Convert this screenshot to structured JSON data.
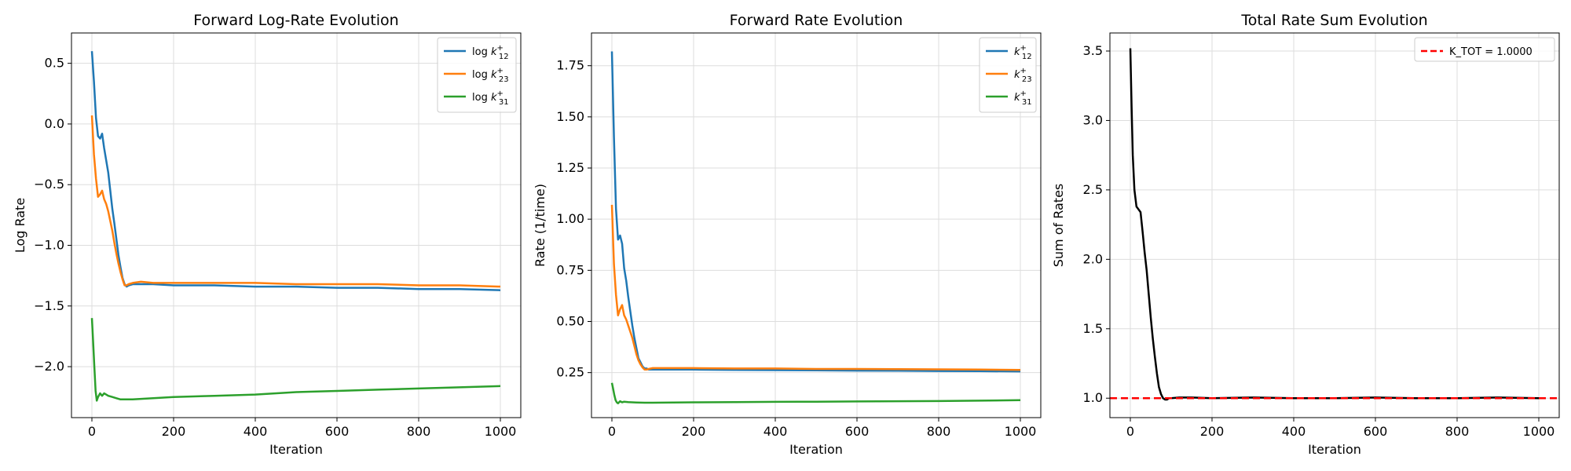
{
  "chart_data": [
    {
      "type": "line",
      "title": "Forward Log-Rate Evolution",
      "xlabel": "Iteration",
      "ylabel": "Log Rate",
      "xlim": [
        -50,
        1050
      ],
      "ylim": [
        -2.42,
        0.75
      ],
      "xticks": [
        0,
        200,
        400,
        600,
        800,
        1000
      ],
      "xtick_labels": [
        "0",
        "200",
        "400",
        "600",
        "800",
        "1000"
      ],
      "yticks": [
        -2.0,
        -1.5,
        -1.0,
        -0.5,
        0.0,
        0.5
      ],
      "ytick_labels": [
        "−2.0",
        "−1.5",
        "−1.0",
        "−0.5",
        "0.0",
        "0.5"
      ],
      "grid": true,
      "legend_position": "top-right",
      "series": [
        {
          "name": "log k12+",
          "legend_base": "log k",
          "legend_sub": "12",
          "legend_sup": "+",
          "color": "#1f77b4",
          "x": [
            0,
            5,
            10,
            15,
            20,
            25,
            30,
            35,
            40,
            45,
            50,
            55,
            60,
            65,
            70,
            75,
            80,
            85,
            90,
            100,
            120,
            150,
            200,
            300,
            400,
            500,
            600,
            700,
            800,
            900,
            1000
          ],
          "y": [
            0.6,
            0.35,
            0.05,
            -0.1,
            -0.12,
            -0.08,
            -0.2,
            -0.3,
            -0.4,
            -0.55,
            -0.7,
            -0.82,
            -0.95,
            -1.08,
            -1.18,
            -1.27,
            -1.32,
            -1.34,
            -1.33,
            -1.32,
            -1.32,
            -1.32,
            -1.33,
            -1.33,
            -1.34,
            -1.34,
            -1.35,
            -1.35,
            -1.36,
            -1.36,
            -1.37
          ]
        },
        {
          "name": "log k23+",
          "legend_base": "log k",
          "legend_sub": "23",
          "legend_sup": "+",
          "color": "#ff7f0e",
          "x": [
            0,
            5,
            10,
            15,
            20,
            25,
            30,
            35,
            40,
            45,
            50,
            55,
            60,
            65,
            70,
            75,
            80,
            85,
            90,
            100,
            120,
            150,
            200,
            300,
            400,
            500,
            600,
            700,
            800,
            900,
            1000
          ],
          "y": [
            0.07,
            -0.25,
            -0.45,
            -0.6,
            -0.58,
            -0.55,
            -0.62,
            -0.66,
            -0.72,
            -0.8,
            -0.88,
            -0.98,
            -1.07,
            -1.15,
            -1.22,
            -1.28,
            -1.33,
            -1.33,
            -1.32,
            -1.31,
            -1.3,
            -1.31,
            -1.31,
            -1.31,
            -1.31,
            -1.32,
            -1.32,
            -1.32,
            -1.33,
            -1.33,
            -1.34
          ]
        },
        {
          "name": "log k31+",
          "legend_base": "log k",
          "legend_sub": "31",
          "legend_sup": "+",
          "color": "#2ca02c",
          "x": [
            0,
            3,
            6,
            9,
            12,
            15,
            20,
            25,
            30,
            40,
            50,
            60,
            70,
            80,
            90,
            100,
            150,
            200,
            300,
            400,
            500,
            600,
            700,
            800,
            900,
            1000
          ],
          "y": [
            -1.6,
            -1.8,
            -2.0,
            -2.2,
            -2.28,
            -2.25,
            -2.22,
            -2.24,
            -2.22,
            -2.24,
            -2.25,
            -2.26,
            -2.27,
            -2.27,
            -2.27,
            -2.27,
            -2.26,
            -2.25,
            -2.24,
            -2.23,
            -2.21,
            -2.2,
            -2.19,
            -2.18,
            -2.17,
            -2.16
          ]
        }
      ]
    },
    {
      "type": "line",
      "title": "Forward Rate Evolution",
      "xlabel": "Iteration",
      "ylabel": "Rate (1/time)",
      "xlim": [
        -50,
        1050
      ],
      "ylim": [
        0.03,
        1.91
      ],
      "xticks": [
        0,
        200,
        400,
        600,
        800,
        1000
      ],
      "xtick_labels": [
        "0",
        "200",
        "400",
        "600",
        "800",
        "1000"
      ],
      "yticks": [
        0.25,
        0.5,
        0.75,
        1.0,
        1.25,
        1.5,
        1.75
      ],
      "ytick_labels": [
        "0.25",
        "0.50",
        "0.75",
        "1.00",
        "1.25",
        "1.50",
        "1.75"
      ],
      "grid": true,
      "legend_position": "top-right",
      "series": [
        {
          "name": "k12+",
          "legend_base": "k",
          "legend_sub": "12",
          "legend_sup": "+",
          "color": "#1f77b4",
          "x": [
            0,
            5,
            10,
            15,
            20,
            25,
            30,
            35,
            40,
            45,
            50,
            55,
            60,
            65,
            70,
            75,
            80,
            85,
            90,
            100,
            150,
            200,
            300,
            400,
            500,
            600,
            700,
            800,
            900,
            1000
          ],
          "y": [
            1.82,
            1.4,
            1.05,
            0.9,
            0.92,
            0.88,
            0.76,
            0.7,
            0.62,
            0.55,
            0.48,
            0.42,
            0.37,
            0.32,
            0.3,
            0.28,
            0.27,
            0.27,
            0.265,
            0.265,
            0.265,
            0.265,
            0.263,
            0.262,
            0.261,
            0.26,
            0.259,
            0.258,
            0.257,
            0.256
          ]
        },
        {
          "name": "k23+",
          "legend_base": "k",
          "legend_sub": "23",
          "legend_sup": "+",
          "color": "#ff7f0e",
          "x": [
            0,
            5,
            10,
            15,
            20,
            25,
            30,
            35,
            40,
            45,
            50,
            55,
            60,
            65,
            70,
            75,
            80,
            85,
            90,
            100,
            150,
            200,
            300,
            400,
            500,
            600,
            700,
            800,
            900,
            1000
          ],
          "y": [
            1.07,
            0.78,
            0.63,
            0.53,
            0.56,
            0.58,
            0.53,
            0.51,
            0.48,
            0.45,
            0.42,
            0.38,
            0.34,
            0.31,
            0.29,
            0.275,
            0.265,
            0.265,
            0.268,
            0.272,
            0.272,
            0.272,
            0.27,
            0.27,
            0.268,
            0.268,
            0.267,
            0.266,
            0.265,
            0.263
          ]
        },
        {
          "name": "k31+",
          "legend_base": "k",
          "legend_sub": "31",
          "legend_sup": "+",
          "color": "#2ca02c",
          "x": [
            0,
            3,
            6,
            9,
            12,
            15,
            20,
            25,
            30,
            40,
            50,
            60,
            80,
            100,
            150,
            200,
            300,
            400,
            500,
            600,
            700,
            800,
            900,
            1000
          ],
          "y": [
            0.2,
            0.17,
            0.14,
            0.115,
            0.105,
            0.1,
            0.11,
            0.105,
            0.108,
            0.106,
            0.105,
            0.104,
            0.103,
            0.103,
            0.104,
            0.105,
            0.106,
            0.107,
            0.108,
            0.109,
            0.11,
            0.111,
            0.113,
            0.115
          ]
        }
      ]
    },
    {
      "type": "line",
      "title": "Total Rate Sum Evolution",
      "xlabel": "Iteration",
      "ylabel": "Sum of Rates",
      "xlim": [
        -50,
        1050
      ],
      "ylim": [
        0.86,
        3.63
      ],
      "xticks": [
        0,
        200,
        400,
        600,
        800,
        1000
      ],
      "xtick_labels": [
        "0",
        "200",
        "400",
        "600",
        "800",
        "1000"
      ],
      "yticks": [
        1.0,
        1.5,
        2.0,
        2.5,
        3.0,
        3.5
      ],
      "ytick_labels": [
        "1.0",
        "1.5",
        "2.0",
        "2.5",
        "3.0",
        "3.5"
      ],
      "grid": true,
      "legend_position": "top-right",
      "series": [
        {
          "name": "Sum of Rates",
          "color": "#000000",
          "x": [
            0,
            3,
            6,
            10,
            15,
            20,
            25,
            30,
            35,
            40,
            45,
            50,
            55,
            60,
            65,
            70,
            75,
            80,
            85,
            90,
            95,
            100,
            120,
            150,
            200,
            300,
            400,
            500,
            600,
            700,
            800,
            900,
            1000
          ],
          "y": [
            3.52,
            3.1,
            2.75,
            2.5,
            2.38,
            2.36,
            2.34,
            2.2,
            2.05,
            1.92,
            1.75,
            1.58,
            1.43,
            1.3,
            1.18,
            1.08,
            1.03,
            1.0,
            0.99,
            0.99,
            1.0,
            1.0,
            1.005,
            1.005,
            1.0,
            1.005,
            1.0,
            1.0,
            1.005,
            1.0,
            1.0,
            1.005,
            1.0
          ]
        },
        {
          "name": "K_TOT = 1.0000",
          "legend_label": "K_TOT = 1.0000",
          "color": "#ff0000",
          "style": "dashed",
          "hline": 1.0
        }
      ]
    }
  ]
}
